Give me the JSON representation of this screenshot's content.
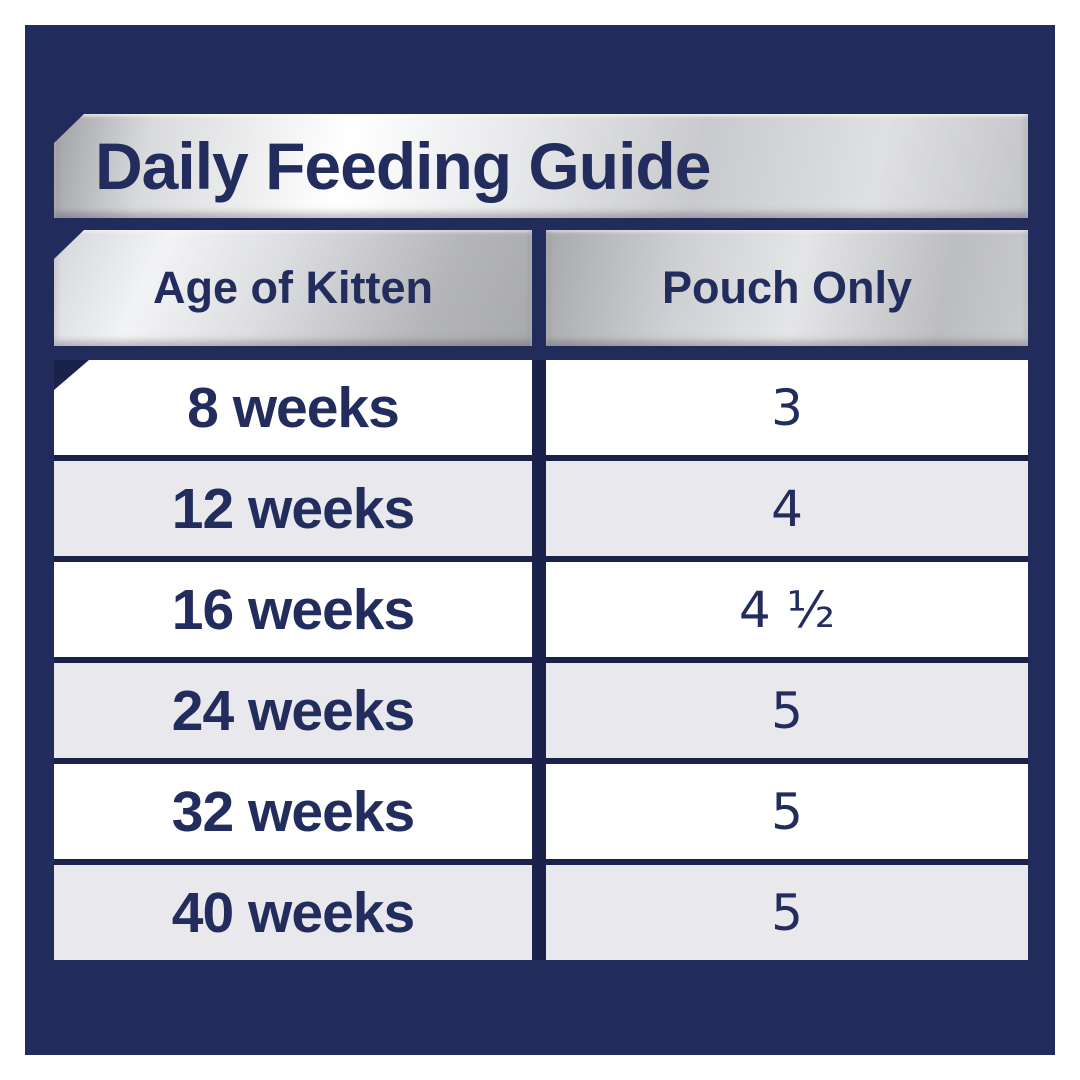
{
  "title": "Daily Feeding Guide",
  "table": {
    "columns": [
      "Age of Kitten",
      "Pouch Only"
    ],
    "rows": [
      {
        "age": "8 weeks",
        "pouches": "3"
      },
      {
        "age": "12 weeks",
        "pouches": "4"
      },
      {
        "age": "16 weeks",
        "pouches": "4 ½"
      },
      {
        "age": "24 weeks",
        "pouches": "5"
      },
      {
        "age": "32 weeks",
        "pouches": "5"
      },
      {
        "age": "40 weeks",
        "pouches": "5"
      }
    ]
  },
  "colors": {
    "panel_navy": "#212b5c",
    "separator_navy": "#1a224c",
    "text_navy": "#222d5e",
    "row_white": "#ffffff",
    "row_gray": "#e9e9ed",
    "silver_light": "#f2f3f5",
    "silver_dark": "#a8a9ac"
  },
  "chart_data": {
    "type": "table",
    "title": "Daily Feeding Guide",
    "columns": [
      "Age of Kitten",
      "Pouch Only"
    ],
    "rows": [
      [
        "8 weeks",
        "3"
      ],
      [
        "12 weeks",
        "4"
      ],
      [
        "16 weeks",
        "4 ½"
      ],
      [
        "24 weeks",
        "5"
      ],
      [
        "32 weeks",
        "5"
      ],
      [
        "40 weeks",
        "5"
      ]
    ]
  }
}
